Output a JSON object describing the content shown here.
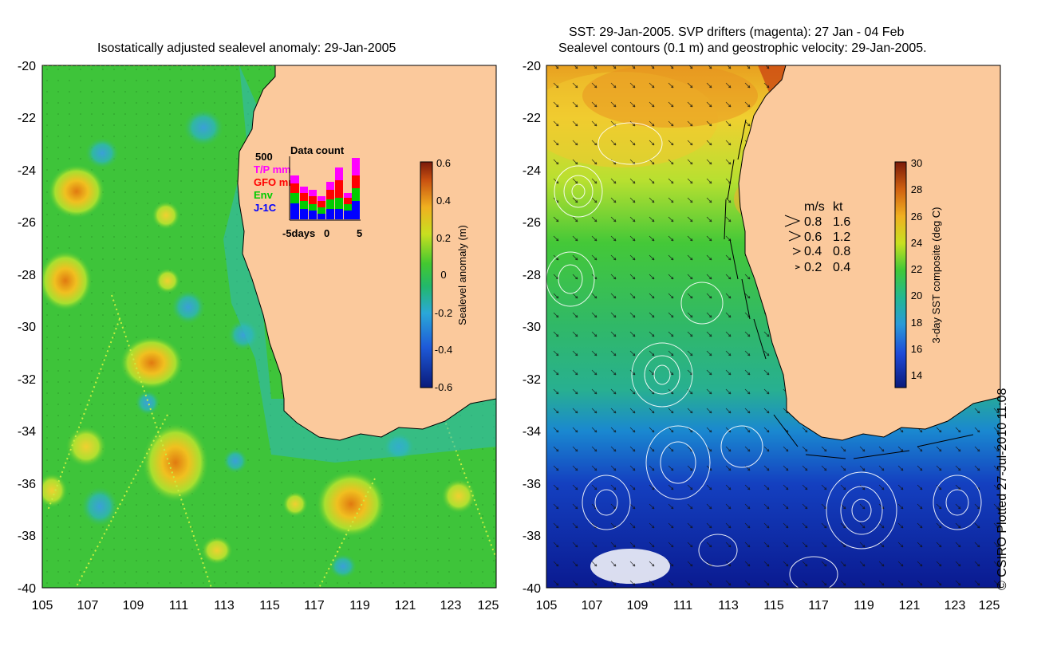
{
  "left_panel": {
    "title": "Isostatically adjusted sealevel anomaly: 29-Jan-2005",
    "y_ticks": [
      "-20",
      "-22",
      "-24",
      "-26",
      "-28",
      "-30",
      "-32",
      "-34",
      "-36",
      "-38",
      "-40"
    ],
    "x_ticks": [
      "105",
      "107",
      "109",
      "111",
      "113",
      "115",
      "117",
      "119",
      "121",
      "123",
      "125"
    ],
    "colorbar": {
      "label": "Sealevel anomaly (m)",
      "ticks": [
        "0.6",
        "0.4",
        "0.2",
        "0",
        "-0.2",
        "-0.4",
        "-0.6"
      ],
      "range": [
        -0.6,
        0.6
      ]
    },
    "data_count": {
      "title": "Data count",
      "y_max_label": "500",
      "legend": [
        {
          "label": "T/P mm",
          "color": "#ff00ff"
        },
        {
          "label": "GFO mm",
          "color": "#ff0000"
        },
        {
          "label": "Env",
          "color": "#00cc00"
        },
        {
          "label": "J-1C",
          "color": "#0000ff"
        }
      ],
      "x_labels": [
        "-5days",
        "0",
        "5"
      ]
    }
  },
  "right_panel": {
    "title_line1": "SST: 29-Jan-2005. SVP drifters (magenta): 27 Jan - 04 Feb",
    "title_line2": "Sealevel contours (0.1 m) and geostrophic velocity: 29-Jan-2005.",
    "y_ticks": [
      "-20",
      "-22",
      "-24",
      "-26",
      "-28",
      "-30",
      "-32",
      "-34",
      "-36",
      "-38",
      "-40"
    ],
    "x_ticks": [
      "105",
      "107",
      "109",
      "111",
      "113",
      "115",
      "117",
      "119",
      "121",
      "123",
      "125"
    ],
    "colorbar": {
      "label": "3-day SST composite (deg C)",
      "ticks": [
        "30",
        "28",
        "26",
        "24",
        "22",
        "20",
        "18",
        "16",
        "14"
      ],
      "range": [
        13,
        30
      ]
    },
    "velocity_legend": {
      "header_ms": "m/s",
      "header_kt": "kt",
      "rows": [
        {
          "ms": "0.8",
          "kt": "1.6"
        },
        {
          "ms": "0.6",
          "kt": "1.2"
        },
        {
          "ms": "0.4",
          "kt": "0.8"
        },
        {
          "ms": "0.2",
          "kt": "0.4"
        }
      ]
    }
  },
  "credit": "© CSIRO Plotted 27-Jul-2010 11:08",
  "colors": {
    "land": "#fbc99c",
    "sla_background": "#3ec43a",
    "sst_warm": "#f0a020"
  }
}
